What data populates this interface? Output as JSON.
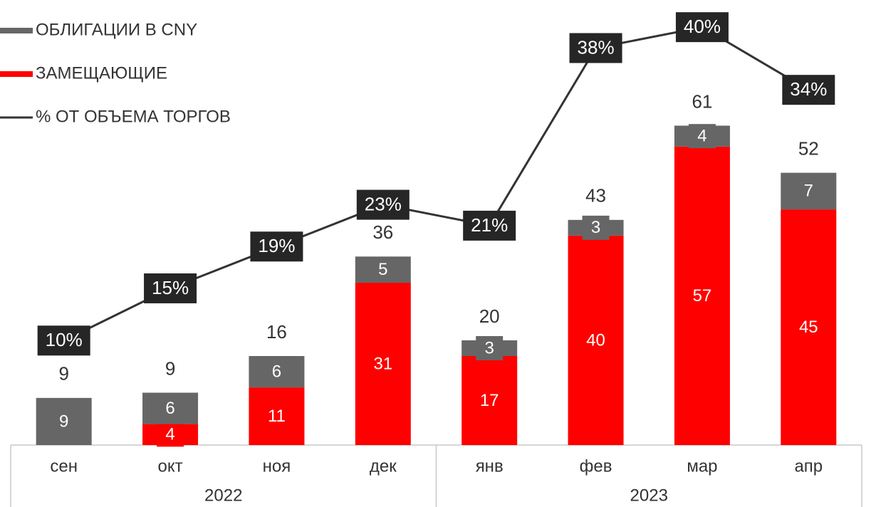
{
  "chart_data": {
    "type": "bar",
    "categories": [
      "сен",
      "окт",
      "ноя",
      "дек",
      "янв",
      "фев",
      "мар",
      "апр"
    ],
    "years": [
      "2022",
      "2023"
    ],
    "series": [
      {
        "name": "ОБЛИГАЦИИ В CNY",
        "color": "#666666",
        "values": [
          9,
          6,
          6,
          5,
          3,
          3,
          4,
          7
        ]
      },
      {
        "name": "ЗАМЕЩАЮЩИЕ",
        "color": "#ff0000",
        "values": [
          null,
          4,
          11,
          31,
          17,
          40,
          57,
          45
        ]
      },
      {
        "name": "% ОТ ОБЪЕМА ТОРГОВ",
        "color": "#333333",
        "type": "line",
        "axis": "y2",
        "values": [
          10,
          15,
          19,
          23,
          21,
          38,
          40,
          34
        ],
        "value_labels": [
          "10%",
          "15%",
          "19%",
          "23%",
          "21%",
          "38%",
          "40%",
          "34%"
        ]
      }
    ],
    "totals": [
      9,
      9,
      16,
      36,
      20,
      43,
      61,
      52
    ],
    "ylim": [
      0,
      85
    ],
    "y2lim": [
      0,
      42.6
    ],
    "legend": "top-left"
  }
}
